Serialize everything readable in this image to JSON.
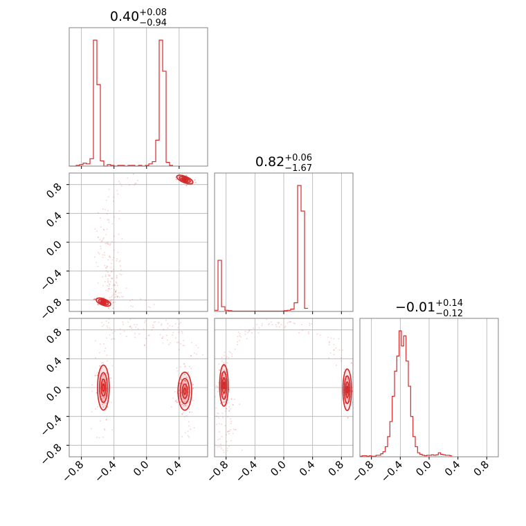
{
  "chart_data": {
    "type": "corner",
    "colors": {
      "series": "#d62728",
      "grid": "#b0b0b0",
      "frame": "#808080"
    },
    "titles": [
      {
        "value": "0.40",
        "plus": "+0.08",
        "minus": "−0.94"
      },
      {
        "value": "0.82",
        "plus": "+0.06",
        "minus": "−1.67"
      },
      {
        "value": "−0.01",
        "plus": "+0.14",
        "minus": "−0.12"
      }
    ],
    "ranges": [
      [
        -0.95,
        0.75
      ],
      [
        -0.96,
        0.96
      ],
      [
        -0.96,
        0.96
      ]
    ],
    "ticks": {
      "values": [
        -0.8,
        -0.4,
        0.0,
        0.4,
        0.8
      ],
      "labels": [
        "−0.8",
        "−0.4",
        "0.0",
        "0.4",
        "0.8"
      ]
    },
    "histograms": [
      {
        "edges_start": -0.95,
        "bin_width": 0.0425,
        "counts": [
          0,
          0,
          1,
          2,
          4,
          3,
          10,
          170,
          110,
          7,
          0,
          2,
          1,
          0,
          1,
          1,
          0,
          1,
          1,
          0,
          1,
          0,
          1,
          3,
          6,
          35,
          170,
          128,
          5,
          1
        ]
      },
      {
        "edges_start": -0.96,
        "bin_width": 0.048,
        "counts": [
          3,
          130,
          12,
          3,
          2,
          1,
          1,
          1,
          1,
          1,
          1,
          1,
          1,
          1,
          1,
          1,
          1,
          1,
          1,
          1,
          2,
          3,
          6,
          22,
          320,
          255,
          8
        ]
      },
      {
        "edges_start": -0.96,
        "bin_width": 0.032,
        "counts": [
          1,
          2,
          2,
          1,
          2,
          1,
          1,
          3,
          3,
          6,
          10,
          20,
          40,
          70,
          120,
          170,
          200,
          250,
          220,
          240,
          190,
          140,
          80,
          40,
          20,
          8,
          5,
          3,
          2,
          3,
          3,
          4,
          3,
          4,
          8,
          5,
          4,
          3,
          3,
          2
        ]
      }
    ],
    "pairs": [
      {
        "x": 0,
        "y": 1,
        "modes": [
          {
            "x": 0.47,
            "y": 0.87,
            "sx": 0.045,
            "sy": 0.018,
            "rot": -25
          },
          {
            "x": -0.53,
            "y": -0.83,
            "sx": 0.04,
            "sy": 0.018,
            "rot": -25
          }
        ]
      },
      {
        "x": 0,
        "y": 2,
        "modes": [
          {
            "x": -0.53,
            "y": 0.0,
            "sx": 0.03,
            "sy": 0.13,
            "rot": 0
          },
          {
            "x": 0.47,
            "y": -0.05,
            "sx": 0.035,
            "sy": 0.11,
            "rot": 0
          }
        ]
      },
      {
        "x": 1,
        "y": 2,
        "modes": [
          {
            "x": -0.83,
            "y": 0.03,
            "sx": 0.025,
            "sy": 0.12,
            "rot": 0
          },
          {
            "x": 0.88,
            "y": -0.03,
            "sx": 0.025,
            "sy": 0.12,
            "rot": 0
          }
        ]
      }
    ]
  }
}
